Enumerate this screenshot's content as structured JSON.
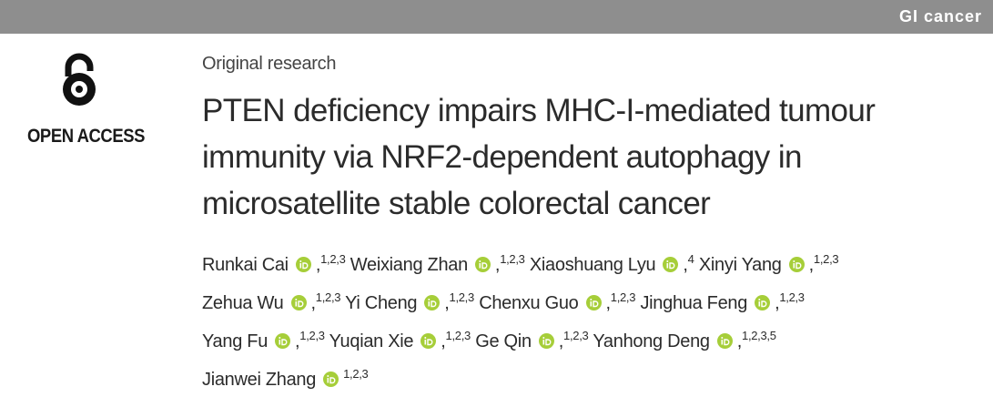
{
  "header": {
    "section": "GI cancer"
  },
  "badge": {
    "label": "OPEN ACCESS"
  },
  "article_type": "Original research",
  "title": {
    "lines": [
      "PTEN deficiency impairs MHC-I-mediated tumour",
      "immunity via NRF2-dependent autophagy in",
      "microsatellite stable colorectal cancer"
    ]
  },
  "authors": {
    "rows": [
      [
        {
          "name": "Runkai Cai",
          "separator": ",",
          "affiliations": "1,2,3"
        },
        {
          "name": "Weixiang Zhan",
          "separator": ",",
          "affiliations": "1,2,3"
        },
        {
          "name": "Xiaoshuang Lyu",
          "separator": ",",
          "affiliations": "4"
        },
        {
          "name": "Xinyi Yang",
          "separator": ",",
          "affiliations": "1,2,3"
        }
      ],
      [
        {
          "name": "Zehua Wu",
          "separator": ",",
          "affiliations": "1,2,3"
        },
        {
          "name": "Yi Cheng",
          "separator": ",",
          "affiliations": "1,2,3"
        },
        {
          "name": "Chenxu Guo",
          "separator": ",",
          "affiliations": "1,2,3"
        },
        {
          "name": "Jinghua Feng",
          "separator": ",",
          "affiliations": "1,2,3"
        }
      ],
      [
        {
          "name": "Yang Fu",
          "separator": ",",
          "affiliations": "1,2,3"
        },
        {
          "name": "Yuqian Xie",
          "separator": ",",
          "affiliations": "1,2,3"
        },
        {
          "name": "Ge Qin",
          "separator": ",",
          "affiliations": "1,2,3"
        },
        {
          "name": "Yanhong Deng",
          "separator": ",",
          "affiliations": "1,2,3,5"
        }
      ],
      [
        {
          "name": "Jianwei Zhang",
          "affiliations": "1,2,3"
        }
      ]
    ]
  }
}
